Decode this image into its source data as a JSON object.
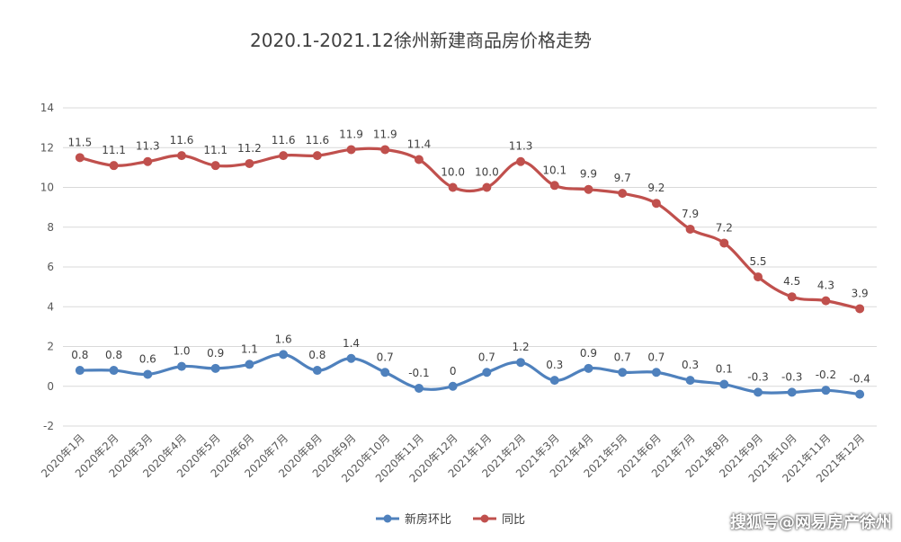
{
  "chart_data": {
    "type": "line",
    "title": "2020.1-2021.12徐州新建商品房价格走势",
    "xlabel": "",
    "ylabel": "",
    "ylim": [
      -2,
      14
    ],
    "yticks": [
      "14",
      "12",
      "10",
      "8",
      "6",
      "4",
      "2",
      "0",
      "-2"
    ],
    "grid": true,
    "legend_position": "bottom",
    "categories": [
      "2020年1月",
      "2020年2月",
      "2020年3月",
      "2020年4月",
      "2020年5月",
      "2020年6月",
      "2020年7月",
      "2020年8月",
      "2020年9月",
      "2020年10月",
      "2020年11月",
      "2020年12月",
      "2021年1月",
      "2021年2月",
      "2021年3月",
      "2021年4月",
      "2021年5月",
      "2021年6月",
      "2021年7月",
      "2021年8月",
      "2021年9月",
      "2021年10月",
      "2021年11月",
      "2021年12月"
    ],
    "series": [
      {
        "name": "新房环比",
        "color": "#4f81bd",
        "values": [
          0.8,
          0.8,
          0.6,
          1.0,
          0.9,
          1.1,
          1.6,
          0.8,
          1.4,
          0.7,
          -0.1,
          0,
          0.7,
          1.2,
          0.3,
          0.9,
          0.7,
          0.7,
          0.3,
          0.1,
          -0.3,
          -0.3,
          -0.2,
          -0.4
        ],
        "labels": [
          "0.8",
          "0.8",
          "0.6",
          "1.0",
          "0.9",
          "1.1",
          "1.6",
          "0.8",
          "1.4",
          "0.7",
          "-0.1",
          "0",
          "0.7",
          "1.2",
          "0.3",
          "0.9",
          "0.7",
          "0.7",
          "0.3",
          "0.1",
          "-0.3",
          "-0.3",
          "-0.2",
          "-0.4"
        ]
      },
      {
        "name": "同比",
        "color": "#c0504d",
        "values": [
          11.5,
          11.1,
          11.3,
          11.6,
          11.1,
          11.2,
          11.6,
          11.6,
          11.9,
          11.9,
          11.4,
          10.0,
          10.0,
          11.3,
          10.1,
          9.9,
          9.7,
          9.2,
          7.9,
          7.2,
          5.5,
          4.5,
          4.3,
          3.9
        ],
        "labels": [
          "11.5",
          "11.1",
          "11.3",
          "11.6",
          "11.1",
          "11.2",
          "11.6",
          "11.6",
          "11.9",
          "11.9",
          "11.4",
          "10.0",
          "10.0",
          "11.3",
          "10.1",
          "9.9",
          "9.7",
          "9.2",
          "7.9",
          "7.2",
          "5.5",
          "4.5",
          "4.3",
          "3.9"
        ]
      }
    ]
  },
  "watermark": "搜狐号@网易房产徐州"
}
